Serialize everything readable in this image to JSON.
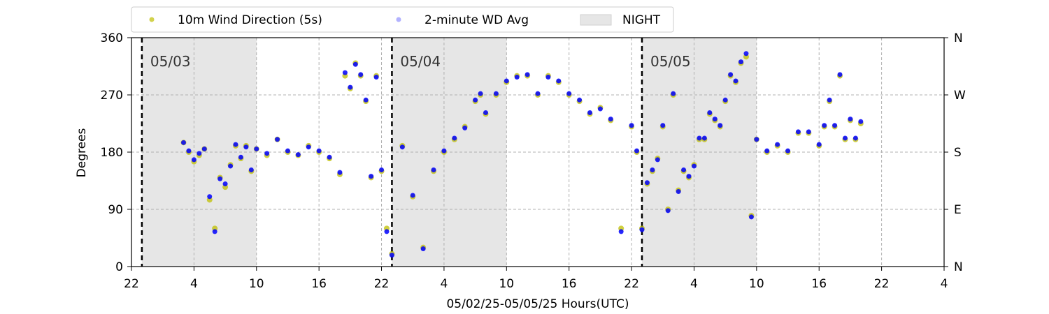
{
  "chart_data": {
    "type": "scatter",
    "xlabel": "05/02/25-05/05/25  Hours(UTC)",
    "ylabel": "Degrees",
    "x_range_hours": [
      22,
      100
    ],
    "x_tick_hours": [
      22,
      28,
      34,
      40,
      46,
      52,
      58,
      64,
      70,
      76,
      82,
      88,
      94,
      100
    ],
    "x_tick_labels": [
      "22",
      "4",
      "10",
      "16",
      "22",
      "4",
      "10",
      "16",
      "22",
      "4",
      "10",
      "16",
      "22",
      "4"
    ],
    "ylim": [
      0,
      360
    ],
    "y_ticks": [
      0,
      90,
      180,
      270,
      360
    ],
    "y_tick_labels": [
      "0",
      "90",
      "180",
      "270",
      "360"
    ],
    "y2_tick_labels": [
      "N",
      "E",
      "S",
      "W",
      "N"
    ],
    "grid": true,
    "legend_position": "top-left, above plot",
    "legend": [
      {
        "label": "10m Wind Direction (5s)",
        "color": "#bfbf00",
        "marker": "circle"
      },
      {
        "label": "2-minute WD Avg",
        "color": "#0000ff",
        "marker": "circle"
      },
      {
        "label": "NIGHT",
        "color": "#e6e6e6",
        "marker": "rect"
      }
    ],
    "night_spans_hours": [
      [
        23,
        34
      ],
      [
        47,
        58
      ],
      [
        71,
        82
      ]
    ],
    "day_markers": [
      {
        "hour": 23,
        "label": "05/03"
      },
      {
        "hour": 47,
        "label": "05/04"
      },
      {
        "hour": 71,
        "label": "05/05"
      }
    ],
    "series": [
      {
        "name": "10m Wind Direction (5s)",
        "color": "#bfbf00",
        "x": [
          27,
          27.5,
          28,
          28.5,
          29,
          29.5,
          30,
          30.5,
          31,
          31.5,
          32,
          32.5,
          33,
          33.5,
          34,
          35,
          36,
          37,
          38,
          39,
          40,
          41,
          42,
          42.5,
          43,
          43.5,
          44,
          44.5,
          45,
          45.5,
          46,
          46.5,
          47,
          48,
          49,
          50,
          51,
          52,
          53,
          54,
          55,
          55.5,
          56,
          57,
          58,
          59,
          60,
          61,
          62,
          63,
          64,
          65,
          66,
          67,
          68,
          69,
          70,
          70.5,
          71,
          71.5,
          72,
          72.5,
          73,
          73.5,
          74,
          74.5,
          75,
          75.5,
          76,
          76.5,
          77,
          77.5,
          78,
          78.5,
          79,
          79.5,
          80,
          80.5,
          81,
          81.5,
          82,
          83,
          84,
          85,
          86,
          87,
          88,
          88.5,
          89,
          89.5,
          90,
          90.5,
          91,
          91.5,
          92
        ],
        "y": [
          195,
          180,
          165,
          175,
          185,
          105,
          60,
          140,
          125,
          160,
          190,
          170,
          190,
          150,
          185,
          175,
          200,
          180,
          175,
          190,
          180,
          170,
          145,
          300,
          280,
          320,
          300,
          260,
          140,
          300,
          150,
          60,
          20,
          190,
          110,
          30,
          150,
          180,
          200,
          220,
          260,
          270,
          240,
          270,
          290,
          300,
          300,
          270,
          300,
          290,
          270,
          260,
          240,
          250,
          230,
          60,
          220,
          180,
          60,
          130,
          150,
          170,
          220,
          90,
          270,
          120,
          150,
          140,
          160,
          200,
          200,
          240,
          230,
          220,
          260,
          300,
          290,
          320,
          330,
          80,
          200,
          180,
          190,
          180,
          210,
          210,
          190,
          220,
          260,
          220,
          300,
          200,
          230,
          200,
          225
        ]
      },
      {
        "name": "2-minute WD Avg",
        "color": "#0000ff",
        "x": [
          27,
          27.5,
          28,
          28.5,
          29,
          29.5,
          30,
          30.5,
          31,
          31.5,
          32,
          32.5,
          33,
          33.5,
          34,
          35,
          36,
          37,
          38,
          39,
          40,
          41,
          42,
          42.5,
          43,
          43.5,
          44,
          44.5,
          45,
          45.5,
          46,
          46.5,
          47,
          48,
          49,
          50,
          51,
          52,
          53,
          54,
          55,
          55.5,
          56,
          57,
          58,
          59,
          60,
          61,
          62,
          63,
          64,
          65,
          66,
          67,
          68,
          69,
          70,
          70.5,
          71,
          71.5,
          72,
          72.5,
          73,
          73.5,
          74,
          74.5,
          75,
          75.5,
          76,
          76.5,
          77,
          77.5,
          78,
          78.5,
          79,
          79.5,
          80,
          80.5,
          81,
          81.5,
          82,
          83,
          84,
          85,
          86,
          87,
          88,
          88.5,
          89,
          89.5,
          90,
          90.5,
          91,
          91.5,
          92
        ],
        "y": [
          195,
          182,
          168,
          178,
          185,
          110,
          55,
          138,
          130,
          158,
          192,
          172,
          188,
          152,
          185,
          178,
          200,
          182,
          176,
          188,
          182,
          172,
          148,
          305,
          282,
          318,
          302,
          262,
          142,
          298,
          152,
          55,
          18,
          188,
          112,
          28,
          152,
          182,
          202,
          218,
          262,
          272,
          242,
          272,
          292,
          298,
          302,
          272,
          298,
          292,
          272,
          262,
          242,
          248,
          232,
          55,
          222,
          182,
          58,
          132,
          152,
          168,
          222,
          88,
          272,
          118,
          152,
          142,
          158,
          202,
          202,
          242,
          232,
          222,
          262,
          302,
          292,
          322,
          335,
          78,
          200,
          182,
          192,
          182,
          212,
          212,
          192,
          222,
          262,
          222,
          302,
          202,
          232,
          202,
          228
        ]
      }
    ]
  }
}
